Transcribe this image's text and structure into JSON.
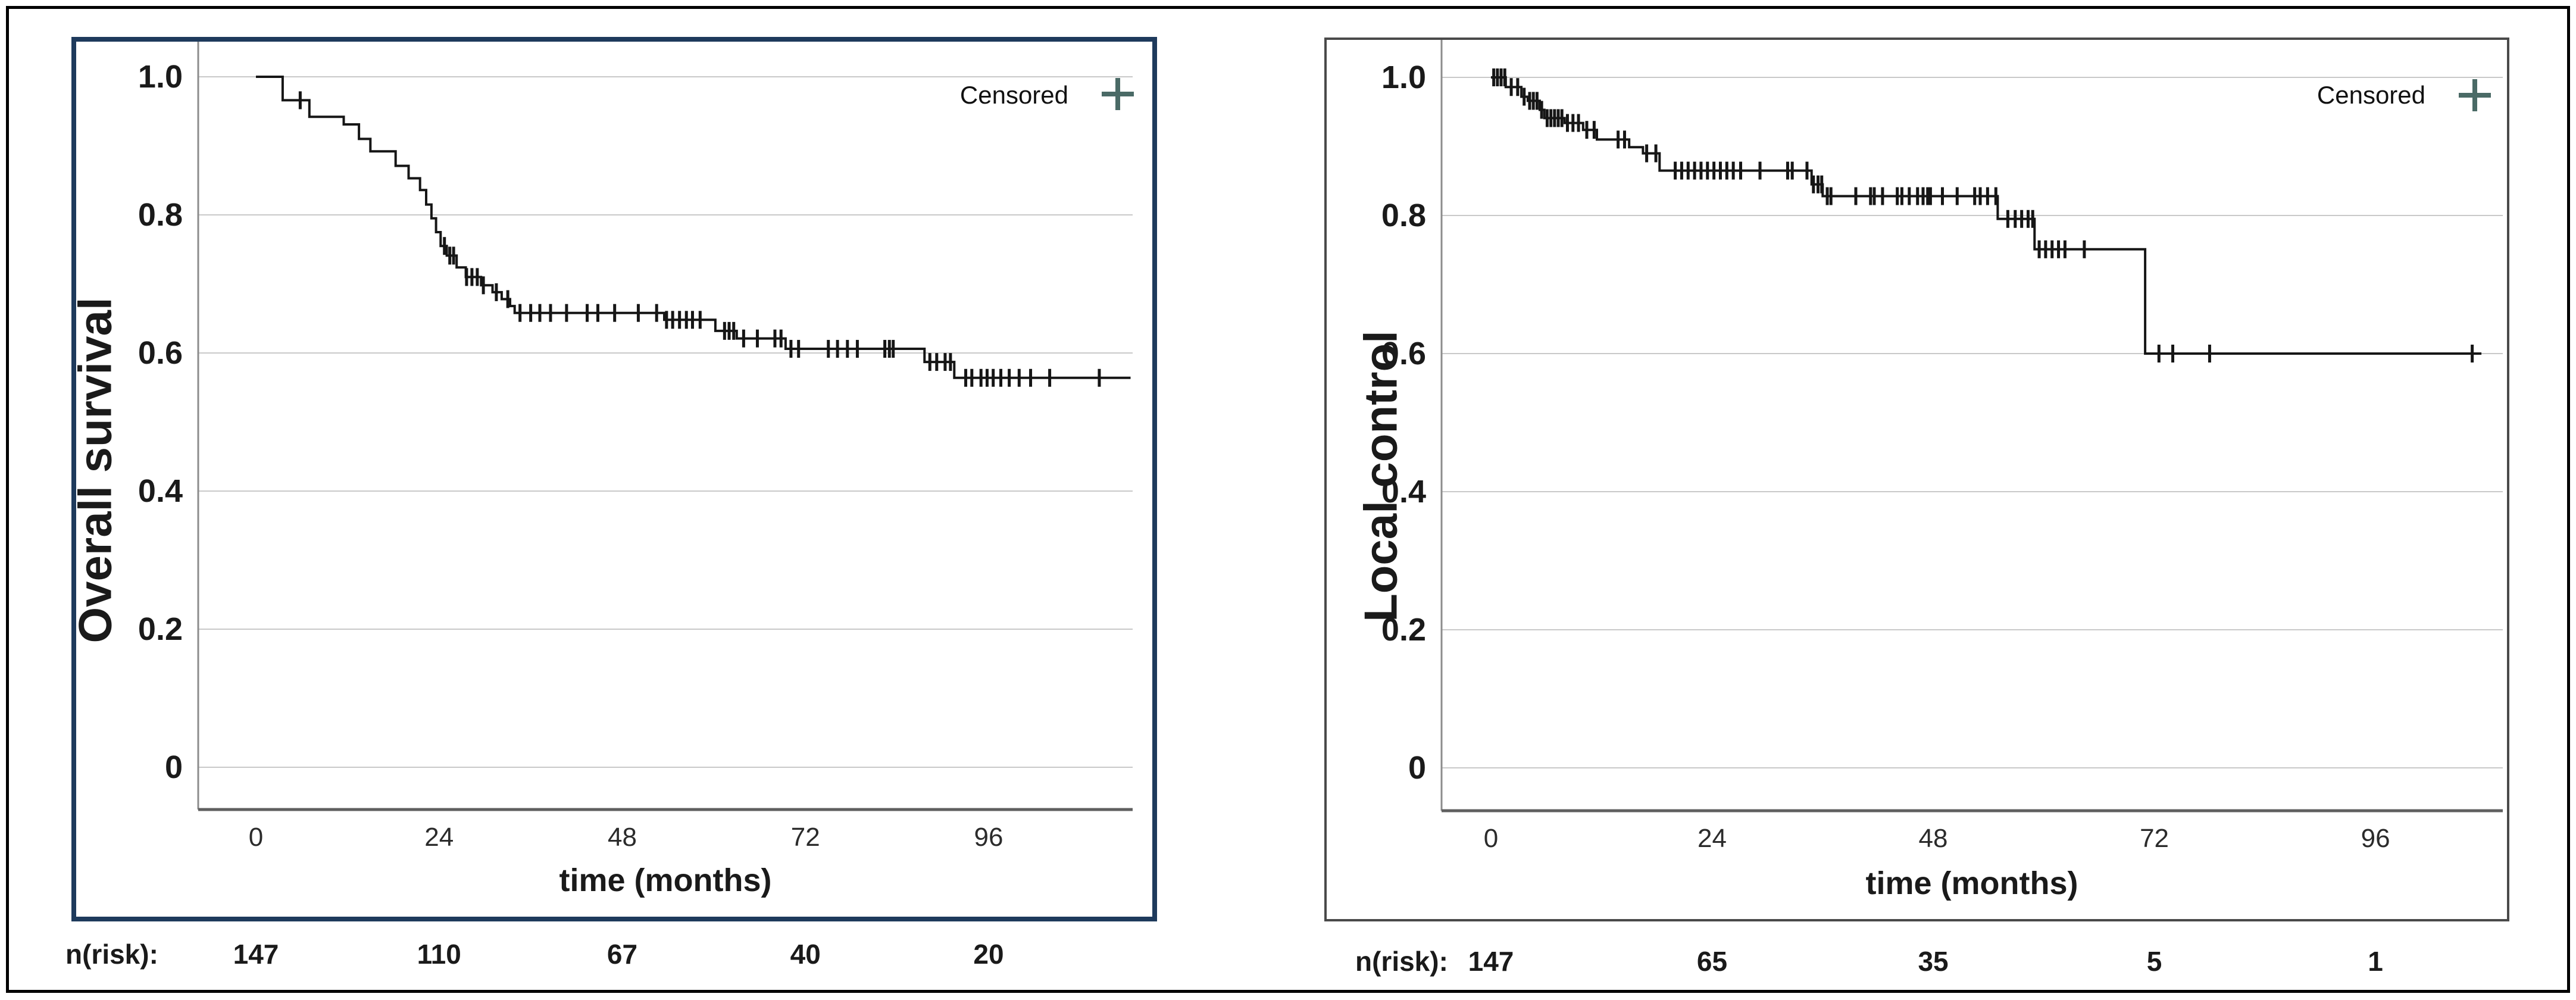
{
  "figure": {
    "background": "#ffffff",
    "outer_border_color": "#000000"
  },
  "colors": {
    "curve": "#161616",
    "grid": "#c9c9c9",
    "y_axis": "#8c8c8c",
    "x_axis": "#5f5f5f",
    "censor_marker": "#161616",
    "legend_marker": "#4a6a66",
    "left_panel_border": "#1e3a5c",
    "right_panel_border": "#4a4a4a"
  },
  "chart_data": [
    {
      "type": "line",
      "subtype": "kaplan-meier-step",
      "title": "",
      "ylabel": "Overall survival",
      "xlabel": "time (months)",
      "legend": {
        "label": "Censored",
        "marker": "plus",
        "color": "#4a6a66",
        "position": "top-right"
      },
      "grid": "horizontal",
      "xlim": [
        0,
        115
      ],
      "ylim": [
        0,
        1.08
      ],
      "x_ticks": [
        0,
        24,
        48,
        72,
        96
      ],
      "y_ticks": [
        1.0,
        0.8,
        0.6,
        0.4,
        0.2,
        0
      ],
      "y_tick_labels": [
        "1.0",
        "0.8",
        "0.6",
        "0.4",
        "0.2",
        "0"
      ],
      "series": [
        {
          "name": "Overall survival",
          "end_time": 114.6,
          "steps": [
            [
              0,
              1.0
            ],
            [
              3.5,
              0.966
            ],
            [
              7,
              0.942
            ],
            [
              11.5,
              0.931
            ],
            [
              13.5,
              0.91
            ],
            [
              15,
              0.892
            ],
            [
              18.3,
              0.871
            ],
            [
              20,
              0.853
            ],
            [
              21.5,
              0.836
            ],
            [
              22.3,
              0.815
            ],
            [
              23,
              0.795
            ],
            [
              23.6,
              0.775
            ],
            [
              24.2,
              0.755
            ],
            [
              25,
              0.741
            ],
            [
              26.3,
              0.724
            ],
            [
              27.5,
              0.71
            ],
            [
              29.5,
              0.698
            ],
            [
              31,
              0.688
            ],
            [
              32.2,
              0.678
            ],
            [
              33.3,
              0.668
            ],
            [
              33.9,
              0.658
            ],
            [
              53.5,
              0.648
            ],
            [
              60.2,
              0.632
            ],
            [
              63,
              0.621
            ],
            [
              69.4,
              0.606
            ],
            [
              87.6,
              0.587
            ],
            [
              91.5,
              0.564
            ]
          ],
          "censor_times": [
            5.8,
            24.7,
            25.4,
            25.9,
            27.6,
            28.3,
            29,
            29.8,
            31.5,
            33,
            34.6,
            36,
            37.2,
            38.6,
            40.7,
            43.4,
            44.8,
            47,
            50.1,
            52.5,
            53.8,
            54.6,
            55.5,
            56.4,
            57.2,
            58.2,
            61.4,
            62,
            62.6,
            63.9,
            65.7,
            68,
            68.8,
            70.1,
            71.1,
            75,
            76.2,
            77.5,
            78.8,
            82.4,
            83,
            83.5,
            88.3,
            89.2,
            90.3,
            91,
            93,
            93.8,
            95,
            95.8,
            96.6,
            97.6,
            98.7,
            100,
            101.5,
            104,
            110.5
          ]
        }
      ],
      "at_risk": {
        "label": "n(risk):",
        "times": [
          0,
          24,
          48,
          72,
          96
        ],
        "values": [
          "147",
          "110",
          "67",
          "40",
          "20"
        ]
      }
    },
    {
      "type": "line",
      "subtype": "kaplan-meier-step",
      "title": "",
      "ylabel": "Local control",
      "xlabel": "time (months)",
      "legend": {
        "label": "Censored",
        "marker": "plus",
        "color": "#4a6a66",
        "position": "top-right"
      },
      "grid": "horizontal",
      "xlim": [
        0,
        110
      ],
      "ylim": [
        0,
        1.08
      ],
      "x_ticks": [
        0,
        24,
        48,
        72,
        96
      ],
      "y_ticks": [
        1.0,
        0.8,
        0.6,
        0.4,
        0.2,
        0
      ],
      "y_tick_labels": [
        "1.0",
        "0.8",
        "0.6",
        "0.4",
        "0.2",
        "0"
      ],
      "series": [
        {
          "name": "Local control",
          "end_time": 107.5,
          "steps": [
            [
              0,
              1.0
            ],
            [
              1.6,
              0.986
            ],
            [
              3.3,
              0.972
            ],
            [
              4,
              0.966
            ],
            [
              5.3,
              0.953
            ],
            [
              5.8,
              0.941
            ],
            [
              8,
              0.934
            ],
            [
              10,
              0.924
            ],
            [
              11.5,
              0.91
            ],
            [
              15,
              0.899
            ],
            [
              16.5,
              0.89
            ],
            [
              18.3,
              0.865
            ],
            [
              34.8,
              0.845
            ],
            [
              36,
              0.828
            ],
            [
              55,
              0.795
            ],
            [
              59,
              0.751
            ],
            [
              71,
              0.6
            ]
          ],
          "censor_times": [
            0.3,
            0.7,
            1.1,
            1.5,
            2.2,
            2.9,
            3.6,
            4.2,
            4.6,
            5,
            5.5,
            6.1,
            6.5,
            6.9,
            7.3,
            7.7,
            8.3,
            8.9,
            9.5,
            10.4,
            11.2,
            13.8,
            14.5,
            16.9,
            17.9,
            20,
            20.7,
            21.4,
            22.1,
            22.8,
            23.5,
            24.2,
            24.9,
            25.6,
            26.3,
            27.1,
            29.2,
            32.2,
            32.7,
            34.3,
            35,
            35.5,
            35.9,
            36.5,
            36.9,
            39.6,
            41.2,
            41.6,
            42.5,
            44.1,
            44.6,
            45.4,
            46.3,
            46.9,
            47.4,
            47.7,
            49,
            50.6,
            52.5,
            53.1,
            53.9,
            54.8,
            56.1,
            56.9,
            57.6,
            58.3,
            58.8,
            59.5,
            60.2,
            60.9,
            61.6,
            62.3,
            64.4,
            72.5,
            74,
            78,
            106.5
          ]
        }
      ],
      "at_risk": {
        "label": "n(risk):",
        "times": [
          0,
          24,
          48,
          72,
          96
        ],
        "values": [
          "147",
          "65",
          "35",
          "5",
          "1"
        ]
      }
    }
  ]
}
